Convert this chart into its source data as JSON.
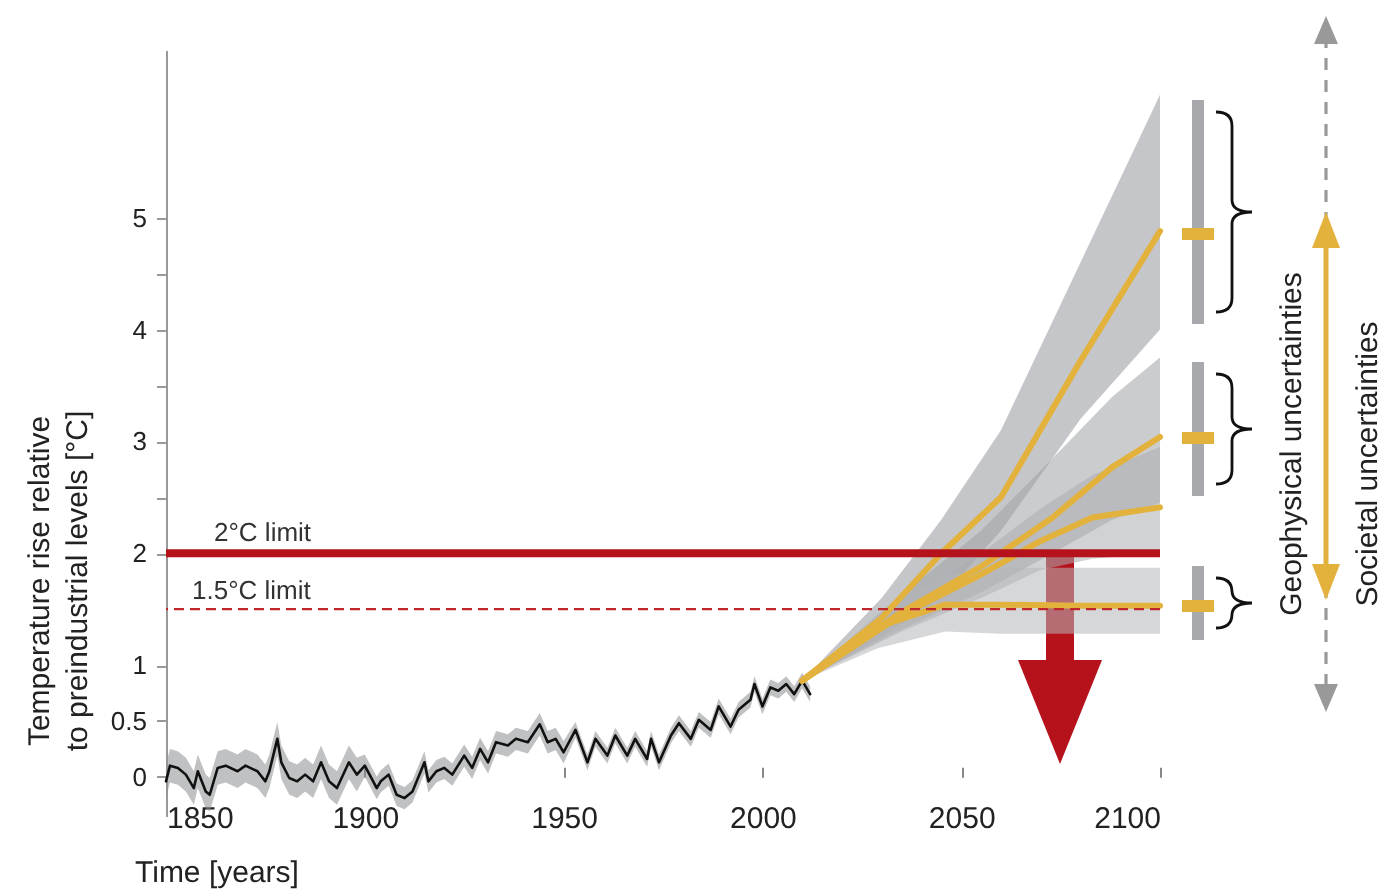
{
  "chart_data": {
    "type": "line",
    "xlabel": "Time [years]",
    "ylabel": "Temperature rise relative\nto preindustrial levels [°C]",
    "xlim": [
      1850,
      2100
    ],
    "xticks": [
      1850,
      1900,
      1950,
      2000,
      2050,
      2100
    ],
    "ylim": [
      -0.35,
      6.5
    ],
    "yticks": [
      0,
      0.5,
      1,
      2,
      3,
      4,
      5,
      {
        "value": 2.5,
        "label": null
      },
      {
        "value": 3.5,
        "label": null
      },
      {
        "value": 4.5,
        "label": null
      }
    ],
    "series": [
      {
        "color": "#111111",
        "x": [
          1850,
          1851,
          1853,
          1855,
          1857,
          1858,
          1860,
          1861,
          1863,
          1865,
          1868,
          1870,
          1873,
          1875,
          1876,
          1878,
          1879,
          1881,
          1883,
          1885,
          1887,
          1889,
          1891,
          1893,
          1896,
          1898,
          1900,
          1903,
          1904,
          1906,
          1908,
          1910,
          1912,
          1915,
          1916,
          1918,
          1920,
          1922,
          1925,
          1927,
          1929,
          1931,
          1933,
          1936,
          1938,
          1941,
          1944,
          1946,
          1948,
          1950,
          1953,
          1956,
          1958,
          1961,
          1963,
          1966,
          1968,
          1971,
          1972,
          1974,
          1977,
          1979,
          1982,
          1984,
          1987,
          1989,
          1992,
          1994,
          1997,
          1998,
          2000,
          2002,
          2004,
          2006,
          2008,
          2010,
          2012
        ],
        "values": [
          -0.04,
          0.1,
          0.08,
          0.02,
          -0.1,
          0.05,
          -0.13,
          -0.16,
          0.08,
          0.1,
          0.05,
          0.1,
          0.05,
          -0.04,
          0.05,
          0.34,
          0.13,
          -0.01,
          -0.04,
          0.02,
          -0.04,
          0.13,
          -0.04,
          -0.1,
          0.13,
          0.02,
          0.1,
          -0.1,
          -0.04,
          0.02,
          -0.16,
          -0.19,
          -0.13,
          0.13,
          -0.04,
          0.05,
          0.08,
          0.02,
          0.19,
          0.08,
          0.25,
          0.13,
          0.31,
          0.28,
          0.34,
          0.31,
          0.47,
          0.31,
          0.34,
          0.22,
          0.42,
          0.13,
          0.34,
          0.19,
          0.37,
          0.19,
          0.34,
          0.16,
          0.34,
          0.13,
          0.37,
          0.48,
          0.34,
          0.51,
          0.42,
          0.63,
          0.45,
          0.6,
          0.69,
          0.83,
          0.63,
          0.8,
          0.77,
          0.83,
          0.74,
          0.86,
          0.74
        ],
        "lower": [
          -0.19,
          -0.05,
          -0.07,
          -0.13,
          -0.25,
          -0.1,
          -0.28,
          -0.31,
          -0.07,
          -0.05,
          -0.1,
          -0.05,
          -0.1,
          -0.19,
          -0.1,
          0.19,
          -0.02,
          -0.16,
          -0.19,
          -0.13,
          -0.19,
          -0.02,
          -0.19,
          -0.25,
          -0.02,
          -0.13,
          0.0,
          -0.2,
          -0.14,
          -0.08,
          -0.26,
          -0.29,
          -0.23,
          0.03,
          -0.14,
          -0.05,
          -0.02,
          -0.08,
          0.09,
          -0.02,
          0.15,
          0.03,
          0.21,
          0.18,
          0.24,
          0.21,
          0.37,
          0.21,
          0.24,
          0.12,
          0.35,
          0.06,
          0.27,
          0.12,
          0.3,
          0.12,
          0.27,
          0.09,
          0.27,
          0.06,
          0.3,
          0.41,
          0.27,
          0.44,
          0.35,
          0.56,
          0.38,
          0.53,
          0.62,
          0.76,
          0.56,
          0.73,
          0.7,
          0.76,
          0.67,
          0.79,
          0.67
        ],
        "upper": [
          0.11,
          0.25,
          0.23,
          0.17,
          0.05,
          0.2,
          0.02,
          -0.01,
          0.23,
          0.25,
          0.2,
          0.25,
          0.2,
          0.11,
          0.2,
          0.49,
          0.28,
          0.14,
          0.11,
          0.17,
          0.11,
          0.28,
          0.11,
          0.05,
          0.28,
          0.17,
          0.2,
          0.0,
          0.06,
          0.12,
          -0.06,
          -0.09,
          -0.03,
          0.23,
          0.06,
          0.15,
          0.18,
          0.12,
          0.29,
          0.18,
          0.35,
          0.23,
          0.41,
          0.38,
          0.44,
          0.41,
          0.57,
          0.41,
          0.44,
          0.32,
          0.49,
          0.2,
          0.41,
          0.26,
          0.44,
          0.26,
          0.41,
          0.23,
          0.41,
          0.2,
          0.44,
          0.55,
          0.41,
          0.58,
          0.49,
          0.7,
          0.52,
          0.67,
          0.76,
          0.9,
          0.7,
          0.87,
          0.84,
          0.9,
          0.81,
          0.93,
          0.81
        ]
      },
      {
        "color": "#e3b23c",
        "x": [
          2010,
          2030,
          2045,
          2060,
          2080,
          2100
        ],
        "values": [
          0.86,
          1.42,
          2.0,
          2.5,
          3.72,
          4.88
        ],
        "lower": [
          0.86,
          1.25,
          1.6,
          2.2,
          3.2,
          4.0
        ],
        "upper": [
          0.86,
          1.6,
          2.3,
          3.1,
          4.6,
          6.1
        ]
      },
      {
        "color": "#e3b23c",
        "x": [
          2010,
          2034,
          2055,
          2073,
          2088,
          2100
        ],
        "values": [
          0.86,
          1.45,
          1.88,
          2.32,
          2.77,
          3.04
        ],
        "lower": [
          0.86,
          1.3,
          1.65,
          2.0,
          2.3,
          2.45
        ],
        "upper": [
          0.86,
          1.6,
          2.2,
          2.85,
          3.4,
          3.75
        ]
      },
      {
        "color": "#e3b23c",
        "x": [
          2010,
          2035,
          2055,
          2070,
          2083,
          2100
        ],
        "values": [
          0.86,
          1.45,
          1.81,
          2.11,
          2.32,
          2.41
        ],
        "lower": [
          0.86,
          1.3,
          1.6,
          1.85,
          1.95,
          2.0
        ],
        "upper": [
          0.86,
          1.55,
          2.0,
          2.4,
          2.7,
          2.95
        ]
      },
      {
        "color": "#e3b23c",
        "x": [
          2010,
          2029,
          2046,
          2060,
          2080,
          2100
        ],
        "values": [
          0.86,
          1.34,
          1.54,
          1.54,
          1.53,
          1.53
        ],
        "lower": [
          0.86,
          1.15,
          1.3,
          1.28,
          1.28,
          1.28
        ],
        "upper": [
          0.86,
          1.45,
          1.8,
          1.87,
          1.87,
          1.87
        ]
      }
    ],
    "ref_lines": [
      {
        "axis": "y",
        "value": 2,
        "label": "2°C limit",
        "color": "#b5121b",
        "line_style": "solid"
      },
      {
        "axis": "y",
        "value": 1.5,
        "label": "1.5°C limit",
        "color": "#c0272d",
        "line_style": "dashed"
      }
    ],
    "annotations": [
      "Geophysical uncertainties",
      "Societal uncertainties"
    ]
  }
}
